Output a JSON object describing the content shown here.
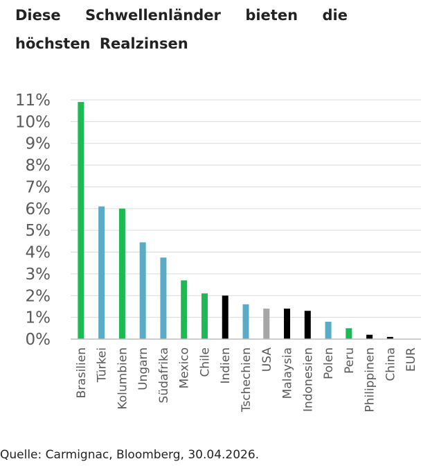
{
  "title": "Diese Schwellenländer bieten die höchsten Realzinsen",
  "source": "Quelle: Carmignac, Bloomberg, 30.04.2026.",
  "colors": {
    "green": "#1db954",
    "blue": "#5aacc6",
    "black": "#000000",
    "grey": "#a6a6a6",
    "grid": "#d9d9d9",
    "axis": "#bfbfbf"
  },
  "chart_data": {
    "type": "bar",
    "title": "Diese Schwellenländer bieten die höchsten Realzinsen",
    "xlabel": "",
    "ylabel": "",
    "ylim": [
      0,
      11
    ],
    "yticks": [
      "0%",
      "1%",
      "2%",
      "3%",
      "4%",
      "5%",
      "6%",
      "7%",
      "8%",
      "9%",
      "10%",
      "11%"
    ],
    "grid": true,
    "legend": "none",
    "categories": [
      "Brasilien",
      "Türkei",
      "Kolumbien",
      "Ungarn",
      "Südafrika",
      "Mexico",
      "Chile",
      "Indien",
      "Tschechien",
      "USA",
      "Malaysia",
      "Indonesien",
      "Polen",
      "Peru",
      "Philippinen",
      "China",
      "EUR"
    ],
    "values": [
      10.9,
      6.1,
      6.0,
      4.45,
      3.75,
      2.7,
      2.1,
      2.0,
      1.6,
      1.4,
      1.4,
      1.3,
      0.8,
      0.5,
      0.2,
      0.1,
      0
    ],
    "bar_colors": [
      "green",
      "blue",
      "green",
      "blue",
      "blue",
      "green",
      "green",
      "black",
      "blue",
      "grey",
      "black",
      "black",
      "blue",
      "green",
      "black",
      "black",
      "grey"
    ]
  }
}
